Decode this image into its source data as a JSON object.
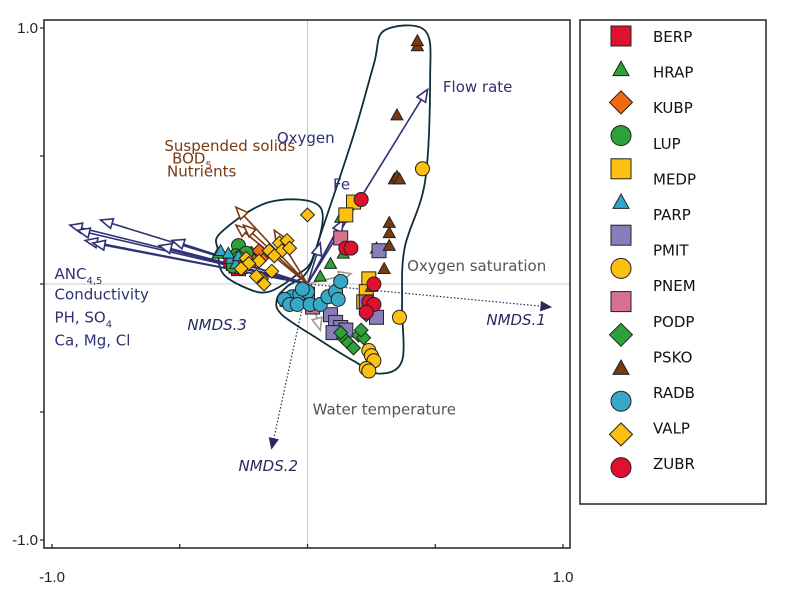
{
  "chart_data": {
    "type": "scatter",
    "title": "",
    "xlabel": "",
    "ylabel": "",
    "xlim": [
      -1.0,
      1.0
    ],
    "ylim": [
      -1.0,
      1.0
    ],
    "x_ticks": [
      -1.0,
      -0.5,
      0.0,
      0.5,
      1.0
    ],
    "y_ticks": [
      -1.0,
      -0.5,
      0.0,
      0.5,
      1.0
    ],
    "x_tick_labels": [
      "-1.0",
      "",
      "",
      "",
      "1.0"
    ],
    "y_tick_labels": [
      "1.0",
      "",
      "",
      "",
      "-1.0"
    ],
    "zero_lines": true,
    "legend_placement": "right",
    "colors": {
      "env_vector_navy": "#2e3275",
      "env_vector_brown": "#7a3a10",
      "env_vector_grey": "#9a9a9a",
      "nmds_axis": "#262a5e",
      "hull": "#0f2e3a"
    },
    "series": [
      {
        "name": "BERP",
        "shape": "square",
        "color": "#e0102e",
        "points": [
          [
            -0.28,
            0.07
          ],
          [
            -0.29,
            0.08
          ],
          [
            -0.27,
            0.06
          ],
          [
            -0.3,
            0.09
          ]
        ]
      },
      {
        "name": "HRAP",
        "shape": "triangle",
        "color": "#2ea23a",
        "points": [
          [
            -0.35,
            0.12
          ],
          [
            0.05,
            0.03
          ],
          [
            0.13,
            0.26
          ],
          [
            0.27,
            0.14
          ],
          [
            0.14,
            0.12
          ],
          [
            0.09,
            0.08
          ]
        ]
      },
      {
        "name": "KUBP",
        "shape": "diamond",
        "color": "#f06a10",
        "points": [
          [
            -0.22,
            0.12
          ],
          [
            -0.2,
            0.11
          ],
          [
            -0.18,
            0.1
          ],
          [
            -0.21,
            0.09
          ],
          [
            -0.19,
            0.13
          ]
        ]
      },
      {
        "name": "LUP",
        "shape": "circle",
        "color": "#2ea23a",
        "points": [
          [
            -0.27,
            0.15
          ],
          [
            -0.28,
            0.11
          ],
          [
            -0.26,
            0.09
          ],
          [
            -0.29,
            0.07
          ],
          [
            -0.24,
            0.12
          ],
          [
            -0.27,
            0.1
          ],
          [
            -0.25,
            0.08
          ]
        ]
      },
      {
        "name": "MEDP",
        "shape": "square",
        "color": "#fcc010",
        "points": [
          [
            0.18,
            0.32
          ],
          [
            0.15,
            0.27
          ],
          [
            0.24,
            0.02
          ],
          [
            0.23,
            -0.03
          ],
          [
            0.22,
            -0.07
          ],
          [
            0.24,
            -0.1
          ]
        ]
      },
      {
        "name": "PARP",
        "shape": "triangle",
        "color": "#30a8c8",
        "points": [
          [
            -0.34,
            0.13
          ],
          [
            -0.3,
            0.1
          ],
          [
            -0.28,
            0.08
          ],
          [
            -0.26,
            0.06
          ],
          [
            -0.27,
            0.11
          ],
          [
            -0.31,
            0.12
          ]
        ]
      },
      {
        "name": "PMIT",
        "shape": "square",
        "color": "#8a7dbc",
        "points": [
          [
            0.28,
            0.13
          ],
          [
            0.25,
            -0.1
          ],
          [
            0.27,
            -0.13
          ],
          [
            0.09,
            -0.12
          ],
          [
            0.11,
            -0.15
          ],
          [
            0.13,
            -0.17
          ],
          [
            0.15,
            -0.18
          ],
          [
            0.1,
            -0.19
          ],
          [
            0.23,
            -0.07
          ]
        ]
      },
      {
        "name": "PMIT_circle",
        "shape": "circle",
        "color": "#fcc010",
        "points": [
          [
            0.45,
            0.45
          ],
          [
            0.36,
            -0.13
          ],
          [
            0.24,
            -0.26
          ],
          [
            0.25,
            -0.28
          ],
          [
            0.26,
            -0.3
          ],
          [
            0.23,
            -0.33
          ],
          [
            0.24,
            -0.34
          ]
        ]
      },
      {
        "name": "PNEM",
        "shape": "square",
        "color": "#d87090",
        "points": [
          [
            0.13,
            0.18
          ],
          [
            -0.08,
            -0.06
          ],
          [
            -0.05,
            -0.07
          ],
          [
            0.0,
            -0.04
          ],
          [
            0.02,
            -0.09
          ]
        ]
      },
      {
        "name": "PODP",
        "shape": "diamond",
        "color": "#2ea23a",
        "points": [
          [
            0.23,
            -0.12
          ],
          [
            0.14,
            -0.21
          ],
          [
            0.16,
            -0.23
          ],
          [
            0.18,
            -0.25
          ],
          [
            0.2,
            -0.2
          ],
          [
            0.22,
            -0.21
          ],
          [
            0.21,
            -0.18
          ],
          [
            0.13,
            -0.19
          ]
        ]
      },
      {
        "name": "PSKO",
        "shape": "triangle",
        "color": "#7a3a10",
        "points": [
          [
            0.43,
            0.93
          ],
          [
            0.43,
            0.95
          ],
          [
            0.35,
            0.66
          ],
          [
            0.34,
            0.41
          ],
          [
            0.35,
            0.42
          ],
          [
            0.36,
            0.41
          ],
          [
            0.32,
            0.24
          ],
          [
            0.32,
            0.2
          ],
          [
            0.32,
            0.15
          ],
          [
            0.3,
            0.06
          ],
          [
            0.25,
            -0.01
          ]
        ]
      },
      {
        "name": "RADB",
        "shape": "circle",
        "color": "#38a8c8",
        "points": [
          [
            -0.06,
            -0.05
          ],
          [
            -0.03,
            -0.04
          ],
          [
            0.0,
            -0.03
          ],
          [
            -0.09,
            -0.06
          ],
          [
            -0.07,
            -0.08
          ],
          [
            -0.04,
            -0.08
          ],
          [
            0.01,
            -0.08
          ],
          [
            0.05,
            -0.08
          ],
          [
            -0.02,
            -0.02
          ],
          [
            0.08,
            -0.05
          ],
          [
            0.11,
            -0.03
          ],
          [
            0.13,
            0.01
          ],
          [
            0.12,
            -0.06
          ]
        ]
      },
      {
        "name": "VALP",
        "shape": "diamond",
        "color": "#fcc010",
        "points": [
          [
            0.0,
            0.27
          ],
          [
            -0.11,
            0.16
          ],
          [
            -0.08,
            0.17
          ],
          [
            -0.1,
            0.13
          ],
          [
            -0.07,
            0.14
          ],
          [
            -0.15,
            0.13
          ],
          [
            -0.13,
            0.11
          ],
          [
            -0.19,
            0.09
          ],
          [
            -0.24,
            0.1
          ],
          [
            -0.23,
            0.08
          ],
          [
            -0.26,
            0.06
          ],
          [
            -0.18,
            0.02
          ],
          [
            -0.17,
            0.0
          ],
          [
            -0.2,
            0.03
          ],
          [
            -0.14,
            0.05
          ]
        ]
      },
      {
        "name": "ZUBR",
        "shape": "circle",
        "color": "#e0102e",
        "points": [
          [
            0.21,
            0.33
          ],
          [
            0.15,
            0.14
          ],
          [
            0.17,
            0.14
          ],
          [
            0.26,
            0.0
          ],
          [
            0.24,
            -0.07
          ],
          [
            0.26,
            -0.08
          ],
          [
            0.23,
            -0.11
          ]
        ]
      }
    ],
    "env_vectors": [
      {
        "label_group": "ANC/Conductivity/PH/Ca",
        "color_key": "env_vector_navy",
        "end": [
          -0.93,
          0.23
        ]
      },
      {
        "label_group": "ANC/Conductivity/PH/Ca",
        "color_key": "env_vector_navy",
        "end": [
          -0.9,
          0.21
        ]
      },
      {
        "label_group": "ANC/Conductivity/PH/Ca",
        "color_key": "env_vector_navy",
        "end": [
          -0.81,
          0.25
        ]
      },
      {
        "label_group": "ANC/Conductivity/PH/Ca",
        "color_key": "env_vector_navy",
        "end": [
          -0.87,
          0.17
        ]
      },
      {
        "label_group": "ANC/Conductivity/PH/Ca",
        "color_key": "env_vector_navy",
        "end": [
          -0.84,
          0.16
        ]
      },
      {
        "label_group": "ANC/Conductivity/PH/Ca",
        "color_key": "env_vector_navy",
        "end": [
          -0.53,
          0.17
        ]
      },
      {
        "label_group": "ANC/Conductivity/PH/Ca",
        "color_key": "env_vector_navy",
        "end": [
          -0.58,
          0.15
        ]
      },
      {
        "label_group": "Suspended solids/BOD/Nutrients",
        "color_key": "env_vector_brown",
        "end": [
          -0.28,
          0.3
        ]
      },
      {
        "label_group": "Suspended solids/BOD/Nutrients",
        "color_key": "env_vector_brown",
        "end": [
          -0.28,
          0.23
        ]
      },
      {
        "label_group": "Suspended solids/BOD/Nutrients",
        "color_key": "env_vector_brown",
        "end": [
          -0.25,
          0.23
        ]
      },
      {
        "label_group": "Suspended solids/BOD/Nutrients",
        "color_key": "env_vector_brown",
        "end": [
          -0.13,
          0.21
        ]
      },
      {
        "label_group": "Flow rate",
        "color_key": "env_vector_navy",
        "end": [
          0.47,
          0.76
        ]
      },
      {
        "label_group": "Fe",
        "color_key": "env_vector_navy",
        "end": [
          0.17,
          0.31
        ]
      },
      {
        "label_group": "Fe",
        "color_key": "env_vector_navy",
        "end": [
          0.14,
          0.25
        ]
      },
      {
        "label_group": "Oxygen",
        "color_key": "env_vector_navy",
        "end": [
          0.05,
          0.16
        ]
      },
      {
        "label_group": "Oxygen saturation",
        "color_key": "env_vector_grey",
        "end": [
          0.17,
          0.04
        ]
      },
      {
        "label_group": "Water temperature",
        "color_key": "env_vector_grey",
        "end": [
          0.05,
          -0.18
        ]
      }
    ],
    "nmds_axes": [
      {
        "name": "NMDS.1",
        "end": [
          0.95,
          -0.09
        ]
      },
      {
        "name": "NMDS.2",
        "end": [
          -0.14,
          -0.64
        ]
      },
      {
        "name": "NMDS.3",
        "end": [
          -0.02,
          -0.02
        ]
      }
    ],
    "hulls": [
      {
        "name": "left-cluster-hull",
        "path": [
          [
            -0.34,
            0.2
          ],
          [
            -0.15,
            0.32
          ],
          [
            0.05,
            0.3
          ],
          [
            0.02,
            0.1
          ],
          [
            -0.05,
            0.03
          ],
          [
            -0.15,
            -0.03
          ],
          [
            -0.23,
            -0.02
          ],
          [
            -0.33,
            0.04
          ],
          [
            -0.35,
            0.13
          ]
        ]
      },
      {
        "name": "right-cluster-hull",
        "path": [
          [
            0.3,
            0.99
          ],
          [
            0.46,
            0.99
          ],
          [
            0.48,
            0.8
          ],
          [
            0.46,
            0.4
          ],
          [
            0.38,
            0.14
          ],
          [
            0.37,
            -0.08
          ],
          [
            0.37,
            -0.3
          ],
          [
            0.28,
            -0.35
          ],
          [
            0.18,
            -0.3
          ],
          [
            0.05,
            -0.22
          ],
          [
            -0.1,
            -0.12
          ],
          [
            -0.12,
            -0.06
          ],
          [
            -0.08,
            -0.01
          ],
          [
            0.0,
            0.05
          ],
          [
            0.06,
            0.22
          ],
          [
            0.18,
            0.58
          ],
          [
            0.26,
            0.86
          ]
        ]
      }
    ],
    "annotations": [
      {
        "text": "Suspended solids",
        "sub": "",
        "at": [
          -0.56,
          0.52
        ],
        "color_key": "env_vector_brown"
      },
      {
        "text": "BOD",
        "sub": "5",
        "at": [
          -0.53,
          0.47
        ],
        "color_key": "env_vector_brown"
      },
      {
        "text": "Nutrients",
        "sub": "",
        "at": [
          -0.55,
          0.42
        ],
        "color_key": "env_vector_brown"
      },
      {
        "text": "ANC",
        "sub": "4,5",
        "at": [
          -0.99,
          0.02
        ],
        "color_key": "env_vector_navy"
      },
      {
        "text": "Conductivity",
        "sub": "",
        "at": [
          -0.99,
          -0.06
        ],
        "color_key": "env_vector_navy"
      },
      {
        "text": "PH, SO",
        "sub": "4",
        "at": [
          -0.99,
          -0.15
        ],
        "color_key": "env_vector_navy"
      },
      {
        "text": "Ca, Mg, Cl",
        "sub": "",
        "at": [
          -0.99,
          -0.24
        ],
        "color_key": "env_vector_navy"
      },
      {
        "text": "Oxygen",
        "sub": "",
        "at": [
          -0.12,
          0.55
        ],
        "color_key": "env_vector_navy"
      },
      {
        "text": "Fe",
        "sub": "",
        "at": [
          0.1,
          0.37
        ],
        "color_key": "env_vector_navy"
      },
      {
        "text": "Flow rate",
        "sub": "",
        "at": [
          0.53,
          0.75
        ],
        "color_key": "env_vector_navy"
      },
      {
        "text": "Oxygen saturation",
        "sub": "",
        "at": [
          0.39,
          0.05
        ],
        "color_key": "env_vector_grey_text"
      },
      {
        "text": "Water temperature",
        "sub": "",
        "at": [
          0.02,
          -0.51
        ],
        "color_key": "env_vector_grey_text"
      },
      {
        "text": "NMDS.1",
        "sub": "",
        "at": [
          0.7,
          -0.16
        ],
        "color_key": "nmds_axis",
        "italic": true
      },
      {
        "text": "NMDS.2",
        "sub": "",
        "at": [
          -0.27,
          -0.73
        ],
        "color_key": "nmds_axis",
        "italic": true
      },
      {
        "text": "NMDS.3",
        "sub": "",
        "at": [
          -0.47,
          -0.18
        ],
        "color_key": "nmds_axis",
        "italic": true
      }
    ],
    "legend": [
      {
        "label": "BERP",
        "shape": "square",
        "color": "#e0102e"
      },
      {
        "label": "HRAP",
        "shape": "triangle",
        "color": "#2ea23a"
      },
      {
        "label": "KUBP",
        "shape": "diamond",
        "color": "#f06a10"
      },
      {
        "label": "LUP",
        "shape": "circle",
        "color": "#2ea23a"
      },
      {
        "label": "MEDP",
        "shape": "square",
        "color": "#fcc010"
      },
      {
        "label": "PARP",
        "shape": "triangle",
        "color": "#30a8c8"
      },
      {
        "label": "PMIT",
        "shape": "square",
        "color": "#8a7dbc"
      },
      {
        "label": "PMIT",
        "shape": "circle",
        "color": "#fcc010",
        "label_row_offset": true
      },
      {
        "label": "PNEM",
        "shape": "square",
        "color": "#d87090"
      },
      {
        "label": "PODP",
        "shape": "diamond",
        "color": "#2ea23a"
      },
      {
        "label": "PSKO",
        "shape": "triangle",
        "color": "#7a3a10"
      },
      {
        "label": "RADB",
        "shape": "circle",
        "color": "#38a8c8"
      },
      {
        "label": "VALP",
        "shape": "diamond",
        "color": "#fcc010"
      },
      {
        "label": "ZUBR",
        "shape": "circle",
        "color": "#e0102e"
      }
    ],
    "legend_labels": [
      "BERP",
      "HRAP",
      "KUBP",
      "LUP",
      "MEDP",
      "PARP",
      "PMIT",
      "PNEM",
      "PODP",
      "PSKO",
      "RADB",
      "VALP",
      "ZUBR"
    ]
  }
}
